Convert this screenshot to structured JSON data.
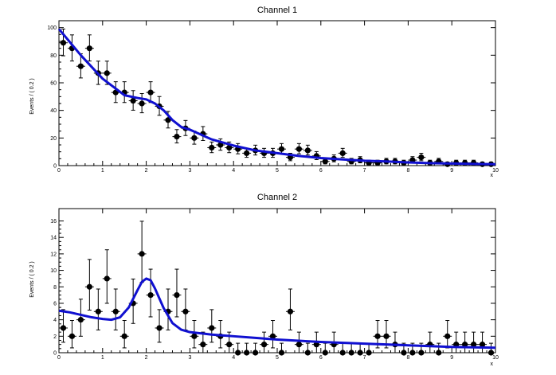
{
  "chart_data": [
    {
      "type": "scatter",
      "title": "Channel 1",
      "xlabel": "x",
      "ylabel": "Events / ( 0.2 )",
      "xlim": [
        0,
        10
      ],
      "ylim": [
        0,
        105
      ],
      "xticks": [
        0,
        1,
        2,
        3,
        4,
        5,
        6,
        7,
        8,
        9,
        10
      ],
      "yticks": [
        0,
        20,
        40,
        60,
        80,
        100
      ],
      "grid": false,
      "legend": "none",
      "series": [
        {
          "style": "data-points-with-errors",
          "color": "#000000",
          "x_half_width": 0.1,
          "x": [
            0.1,
            0.3,
            0.5,
            0.7,
            0.9,
            1.1,
            1.3,
            1.5,
            1.7,
            1.9,
            2.1,
            2.3,
            2.5,
            2.7,
            2.9,
            3.1,
            3.3,
            3.5,
            3.7,
            3.9,
            4.1,
            4.3,
            4.5,
            4.7,
            4.9,
            5.1,
            5.3,
            5.5,
            5.7,
            5.9,
            6.1,
            6.3,
            6.5,
            6.7,
            6.9,
            7.1,
            7.3,
            7.5,
            7.7,
            7.9,
            8.1,
            8.3,
            8.5,
            8.7,
            8.9,
            9.1,
            9.3,
            9.5,
            9.7,
            9.9
          ],
          "y": [
            89,
            85,
            72,
            85,
            67,
            67,
            53,
            53,
            47,
            45,
            53,
            43,
            33,
            21,
            27,
            20,
            23,
            13,
            15,
            13,
            12,
            9,
            11,
            9,
            9,
            12,
            6,
            12,
            11,
            7,
            3,
            5,
            9,
            3,
            4,
            2,
            2,
            3,
            3,
            2,
            4,
            6,
            2,
            3,
            1,
            2,
            2,
            2,
            1,
            1
          ]
        },
        {
          "style": "fit-curve",
          "color": "#1010d0",
          "x": [
            0.0,
            0.5,
            1.0,
            1.5,
            1.8,
            2.0,
            2.2,
            2.4,
            2.6,
            2.8,
            3.0,
            3.5,
            4.0,
            4.5,
            5.0,
            5.5,
            6.0,
            6.5,
            7.0,
            7.5,
            8.0,
            8.5,
            9.0,
            9.5,
            10.0
          ],
          "y": [
            99,
            80,
            63,
            51,
            49,
            48,
            45,
            40,
            33,
            28,
            26,
            19,
            14.5,
            11,
            9,
            7,
            5.5,
            4.5,
            3.5,
            3,
            2.3,
            1.8,
            1.5,
            1.2,
            1
          ]
        }
      ]
    },
    {
      "type": "scatter",
      "title": "Channel 2",
      "xlabel": "x",
      "ylabel": "Events / ( 0.2 )",
      "xlim": [
        0,
        10
      ],
      "ylim": [
        0,
        17.5
      ],
      "xticks": [
        0,
        1,
        2,
        3,
        4,
        5,
        6,
        7,
        8,
        9,
        10
      ],
      "yticks": [
        0,
        2,
        4,
        6,
        8,
        10,
        12,
        14,
        16
      ],
      "grid": false,
      "legend": "none",
      "series": [
        {
          "style": "data-points-with-errors",
          "color": "#000000",
          "x_half_width": 0.1,
          "x": [
            0.1,
            0.3,
            0.5,
            0.7,
            0.9,
            1.1,
            1.3,
            1.5,
            1.7,
            1.9,
            2.1,
            2.3,
            2.5,
            2.7,
            2.9,
            3.1,
            3.3,
            3.5,
            3.7,
            3.9,
            4.1,
            4.3,
            4.5,
            4.7,
            4.9,
            5.1,
            5.3,
            5.5,
            5.7,
            5.9,
            6.1,
            6.3,
            6.5,
            6.7,
            6.9,
            7.1,
            7.3,
            7.5,
            7.7,
            7.9,
            8.1,
            8.3,
            8.5,
            8.7,
            8.9,
            9.1,
            9.3,
            9.5,
            9.7,
            9.9
          ],
          "y": [
            3,
            2,
            4,
            8,
            5,
            9,
            5,
            2,
            6,
            12,
            7,
            3,
            5,
            7,
            5,
            2,
            1,
            3,
            2,
            1,
            0,
            0,
            0,
            1,
            2,
            0,
            5,
            1,
            0,
            1,
            0,
            1,
            0,
            0,
            0,
            0,
            2,
            2,
            1,
            0,
            0,
            0,
            1,
            0,
            2,
            1,
            1,
            1,
            1,
            0
          ]
        },
        {
          "style": "fit-curve",
          "color": "#1010d0",
          "x": [
            0.0,
            0.25,
            0.5,
            0.75,
            1.0,
            1.2,
            1.4,
            1.6,
            1.8,
            1.9,
            2.0,
            2.1,
            2.2,
            2.4,
            2.6,
            2.8,
            3.0,
            3.5,
            4.0,
            4.5,
            5.0,
            6.0,
            7.0,
            8.0,
            9.0,
            10.0
          ],
          "y": [
            5.1,
            4.9,
            4.6,
            4.3,
            4.1,
            4.0,
            4.3,
            5.5,
            7.6,
            8.6,
            9.0,
            8.8,
            7.8,
            5.4,
            3.6,
            2.8,
            2.5,
            2.2,
            2.0,
            1.8,
            1.6,
            1.3,
            1.1,
            0.9,
            0.7,
            0.6
          ]
        }
      ]
    }
  ]
}
